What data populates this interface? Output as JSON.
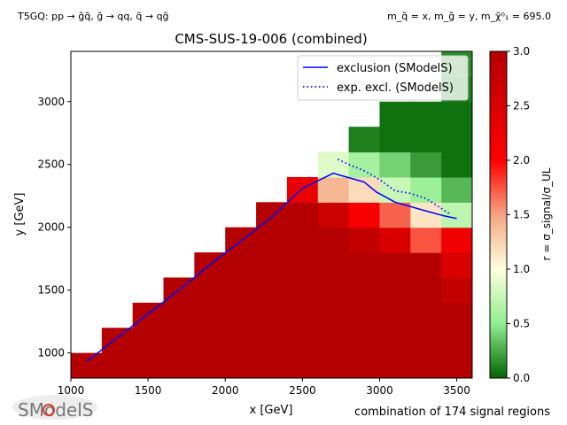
{
  "header": {
    "process": "T5GQ: pp → g̃q̃, g̃ → qq, q̃ → qg̃",
    "masses": "m_q̃ = x, m_g̃ = y, m_χ̃⁰₁ = 695.0"
  },
  "footer": {
    "logo_text": "SModelS",
    "note": "combination of 174 signal regions"
  },
  "chart_data": {
    "type": "heatmap",
    "title": "CMS-SUS-19-006 (combined)",
    "xlabel": "x [GeV]",
    "ylabel": "y [GeV]",
    "xlim": [
      1000,
      3600
    ],
    "ylim": [
      800,
      3400
    ],
    "xticks": [
      1000,
      1500,
      2000,
      2500,
      3000,
      3500
    ],
    "yticks": [
      1000,
      1500,
      2000,
      2500,
      3000
    ],
    "colorbar": {
      "label": "r = σ_signal/σ_UL",
      "range": [
        0,
        3
      ],
      "ticks": [
        0.0,
        0.5,
        1.0,
        1.5,
        2.0,
        2.5,
        3.0
      ],
      "colormap": [
        {
          "v": 0.0,
          "color": "#006400"
        },
        {
          "v": 0.5,
          "color": "#90ee90"
        },
        {
          "v": 1.0,
          "color": "#ffffe0"
        },
        {
          "v": 1.5,
          "color": "#f4a582"
        },
        {
          "v": 2.0,
          "color": "#ff0000"
        },
        {
          "v": 3.0,
          "color": "#b40000"
        }
      ]
    },
    "cell_size": 200,
    "cells": [
      {
        "x": 1100,
        "y": 900,
        "r": 3
      },
      {
        "x": 1300,
        "y": 900,
        "r": 3
      },
      {
        "x": 1500,
        "y": 900,
        "r": 3
      },
      {
        "x": 1700,
        "y": 900,
        "r": 3
      },
      {
        "x": 1900,
        "y": 900,
        "r": 3
      },
      {
        "x": 2100,
        "y": 900,
        "r": 3
      },
      {
        "x": 2300,
        "y": 900,
        "r": 3
      },
      {
        "x": 2500,
        "y": 900,
        "r": 3
      },
      {
        "x": 2700,
        "y": 900,
        "r": 3
      },
      {
        "x": 2900,
        "y": 900,
        "r": 3
      },
      {
        "x": 3100,
        "y": 900,
        "r": 3
      },
      {
        "x": 3300,
        "y": 900,
        "r": 3
      },
      {
        "x": 3500,
        "y": 900,
        "r": 3
      },
      {
        "x": 1300,
        "y": 1100,
        "r": 3
      },
      {
        "x": 1500,
        "y": 1100,
        "r": 3
      },
      {
        "x": 1700,
        "y": 1100,
        "r": 3
      },
      {
        "x": 1900,
        "y": 1100,
        "r": 3
      },
      {
        "x": 2100,
        "y": 1100,
        "r": 3
      },
      {
        "x": 2300,
        "y": 1100,
        "r": 3
      },
      {
        "x": 2500,
        "y": 1100,
        "r": 3
      },
      {
        "x": 2700,
        "y": 1100,
        "r": 3
      },
      {
        "x": 2900,
        "y": 1100,
        "r": 3
      },
      {
        "x": 3100,
        "y": 1100,
        "r": 3
      },
      {
        "x": 3300,
        "y": 1100,
        "r": 3
      },
      {
        "x": 3500,
        "y": 1100,
        "r": 3
      },
      {
        "x": 1500,
        "y": 1300,
        "r": 3
      },
      {
        "x": 1700,
        "y": 1300,
        "r": 3
      },
      {
        "x": 1900,
        "y": 1300,
        "r": 3
      },
      {
        "x": 2100,
        "y": 1300,
        "r": 3
      },
      {
        "x": 2300,
        "y": 1300,
        "r": 3
      },
      {
        "x": 2500,
        "y": 1300,
        "r": 3
      },
      {
        "x": 2700,
        "y": 1300,
        "r": 3
      },
      {
        "x": 2900,
        "y": 1300,
        "r": 3
      },
      {
        "x": 3100,
        "y": 1300,
        "r": 3
      },
      {
        "x": 3300,
        "y": 1300,
        "r": 3
      },
      {
        "x": 3500,
        "y": 1300,
        "r": 3
      },
      {
        "x": 1700,
        "y": 1500,
        "r": 3
      },
      {
        "x": 1900,
        "y": 1500,
        "r": 3
      },
      {
        "x": 2100,
        "y": 1500,
        "r": 3
      },
      {
        "x": 2300,
        "y": 1500,
        "r": 3
      },
      {
        "x": 2500,
        "y": 1500,
        "r": 3
      },
      {
        "x": 2700,
        "y": 1500,
        "r": 3
      },
      {
        "x": 2900,
        "y": 1500,
        "r": 3
      },
      {
        "x": 3100,
        "y": 1500,
        "r": 3
      },
      {
        "x": 3300,
        "y": 1500,
        "r": 3
      },
      {
        "x": 3500,
        "y": 1500,
        "r": 2.8
      },
      {
        "x": 1900,
        "y": 1700,
        "r": 3
      },
      {
        "x": 2100,
        "y": 1700,
        "r": 3
      },
      {
        "x": 2300,
        "y": 1700,
        "r": 3
      },
      {
        "x": 2500,
        "y": 1700,
        "r": 3
      },
      {
        "x": 2700,
        "y": 1700,
        "r": 3
      },
      {
        "x": 2900,
        "y": 1700,
        "r": 3
      },
      {
        "x": 3100,
        "y": 1700,
        "r": 3
      },
      {
        "x": 3300,
        "y": 1700,
        "r": 3
      },
      {
        "x": 3500,
        "y": 1700,
        "r": 2.5
      },
      {
        "x": 2100,
        "y": 1900,
        "r": 3
      },
      {
        "x": 2300,
        "y": 1900,
        "r": 3
      },
      {
        "x": 2500,
        "y": 1900,
        "r": 3
      },
      {
        "x": 2700,
        "y": 1900,
        "r": 3
      },
      {
        "x": 2900,
        "y": 1900,
        "r": 2.8
      },
      {
        "x": 3100,
        "y": 1900,
        "r": 2.5
      },
      {
        "x": 3300,
        "y": 1900,
        "r": 1.75
      },
      {
        "x": 3500,
        "y": 1900,
        "r": 2.2
      },
      {
        "x": 2300,
        "y": 2100,
        "r": 3
      },
      {
        "x": 2500,
        "y": 2100,
        "r": 3
      },
      {
        "x": 2700,
        "y": 2100,
        "r": 2.7
      },
      {
        "x": 2900,
        "y": 2100,
        "r": 2.1
      },
      {
        "x": 3100,
        "y": 2100,
        "r": 1.7
      },
      {
        "x": 3300,
        "y": 2100,
        "r": 1.15
      },
      {
        "x": 3500,
        "y": 2100,
        "r": 0.7
      },
      {
        "x": 2500,
        "y": 2300,
        "r": 2.3
      },
      {
        "x": 2700,
        "y": 2300,
        "r": 1.4
      },
      {
        "x": 2900,
        "y": 2300,
        "r": 1.2
      },
      {
        "x": 3100,
        "y": 2300,
        "r": 0.75
      },
      {
        "x": 3300,
        "y": 2300,
        "r": 0.55
      },
      {
        "x": 3500,
        "y": 2300,
        "r": 0.3
      },
      {
        "x": 2700,
        "y": 2500,
        "r": 0.85
      },
      {
        "x": 2900,
        "y": 2500,
        "r": 0.6
      },
      {
        "x": 3100,
        "y": 2500,
        "r": 0.4
      },
      {
        "x": 3300,
        "y": 2500,
        "r": 0.2
      },
      {
        "x": 3500,
        "y": 2500,
        "r": 0.05
      },
      {
        "x": 2900,
        "y": 2700,
        "r": 0.1
      },
      {
        "x": 3100,
        "y": 2700,
        "r": 0.05
      },
      {
        "x": 3300,
        "y": 2700,
        "r": 0.05
      },
      {
        "x": 3500,
        "y": 2700,
        "r": 0.05
      },
      {
        "x": 3100,
        "y": 2900,
        "r": 0.05
      },
      {
        "x": 3300,
        "y": 2900,
        "r": 0.05
      },
      {
        "x": 3500,
        "y": 2900,
        "r": 0.05
      },
      {
        "x": 3500,
        "y": 3100,
        "r": 0.1
      },
      {
        "x": 3500,
        "y": 3300,
        "r": 0.15
      }
    ],
    "series": [
      {
        "name": "exclusion (SModelS)",
        "color": "#0000ff",
        "style": "solid",
        "x": [
          1100,
          1300,
          1500,
          1700,
          1900,
          2100,
          2300,
          2500,
          2700,
          2900,
          2980,
          3100,
          3300,
          3420,
          3500
        ],
        "y": [
          930,
          1120,
          1310,
          1500,
          1700,
          1890,
          2080,
          2310,
          2430,
          2360,
          2280,
          2200,
          2130,
          2090,
          2070
        ]
      },
      {
        "name": "exp. excl. (SModelS)",
        "color": "#0000ff",
        "style": "dotted",
        "x": [
          2730,
          2800,
          2900,
          3000,
          3100,
          3200,
          3300,
          3400,
          3450
        ],
        "y": [
          2540,
          2500,
          2450,
          2380,
          2290,
          2270,
          2230,
          2150,
          2110
        ]
      }
    ]
  }
}
